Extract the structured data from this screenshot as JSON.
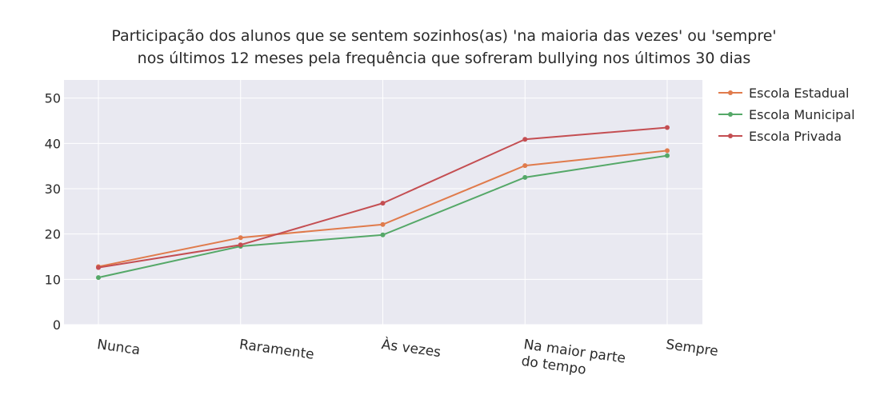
{
  "chart_data": {
    "type": "line",
    "title": [
      "Participação dos alunos que se sentem sozinhos(as) 'na maioria das vezes' ou 'sempre'",
      "nos últimos 12 meses pela frequência que sofreram bullying nos últimos 30 dias"
    ],
    "xlabel": "",
    "ylabel": "",
    "categories": [
      [
        "Nunca"
      ],
      [
        "Raramente"
      ],
      [
        "Às vezes"
      ],
      [
        "Na maior parte",
        "do tempo"
      ],
      [
        "Sempre"
      ]
    ],
    "ylim": [
      0,
      54
    ],
    "yticks": [
      0,
      10,
      20,
      30,
      40,
      50
    ],
    "grid": true,
    "legend_position": "top-right",
    "series": [
      {
        "name": "Escola Estadual",
        "color": "#E07B4C",
        "values": [
          12.8,
          19.2,
          22.1,
          35.1,
          38.4
        ]
      },
      {
        "name": "Escola Municipal",
        "color": "#55A868",
        "values": [
          10.4,
          17.3,
          19.8,
          32.5,
          37.3
        ]
      },
      {
        "name": "Escola Privada",
        "color": "#C44E52",
        "values": [
          12.6,
          17.6,
          26.8,
          40.9,
          43.5
        ]
      }
    ]
  }
}
